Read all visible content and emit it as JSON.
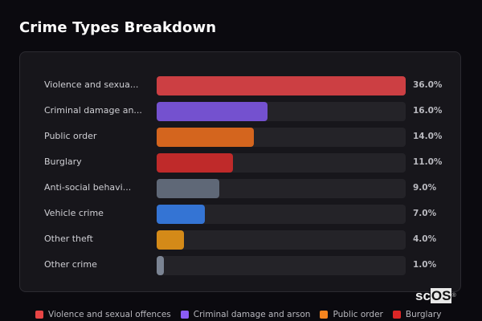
{
  "header": {
    "title": "Crime Types Breakdown"
  },
  "chart_data": {
    "type": "bar",
    "orientation": "horizontal",
    "title": "Crime Types Breakdown",
    "categories": [
      "Violence and sexual offences",
      "Criminal damage and arson",
      "Public order",
      "Burglary",
      "Anti-social behaviour",
      "Vehicle crime",
      "Other theft",
      "Other crime"
    ],
    "display_labels": [
      "Violence and sexua...",
      "Criminal damage an...",
      "Public order",
      "Burglary",
      "Anti-social behavi...",
      "Vehicle crime",
      "Other theft",
      "Other crime"
    ],
    "values": [
      36.0,
      16.0,
      14.0,
      11.0,
      9.0,
      7.0,
      4.0,
      1.0
    ],
    "value_labels": [
      "36.0%",
      "16.0%",
      "14.0%",
      "11.0%",
      "9.0%",
      "7.0%",
      "4.0%",
      "1.0%"
    ],
    "colors": [
      "#cc3f43",
      "#7451cf",
      "#d4651e",
      "#bf2a2a",
      "#5f6877",
      "#3474d4",
      "#d48a18",
      "#7b8493"
    ],
    "xlim": [
      0,
      36
    ],
    "grid": false,
    "legend_position": "bottom",
    "xlabel": "",
    "ylabel": ""
  },
  "legend": {
    "items": [
      {
        "label": "Violence and sexual offences",
        "color": "#e84545"
      },
      {
        "label": "Criminal damage and arson",
        "color": "#8b5cf6"
      },
      {
        "label": "Public order",
        "color": "#f5841f"
      },
      {
        "label": "Burglary",
        "color": "#dc2626"
      }
    ]
  },
  "watermark": {
    "prefix": "sc",
    "highlight": "OS",
    "mark": "®"
  }
}
